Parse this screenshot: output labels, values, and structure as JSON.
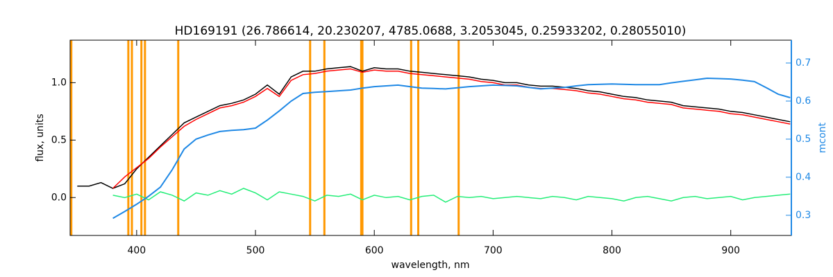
{
  "chart_data": {
    "type": "line",
    "title": "HD169191    (26.786614, 20.230207, 4785.0688, 3.2053045, 0.25933202, 0.28055010)",
    "xlabel": "wavelength, nm",
    "ylabel": "flux, units",
    "y2label": "mcont",
    "xlim": [
      344,
      951
    ],
    "xticks": [
      400,
      500,
      600,
      700,
      800,
      900
    ],
    "ylim": [
      -0.33,
      1.37
    ],
    "yticks": [
      {
        "value": 0,
        "label": "0.0"
      },
      {
        "value": 0.5,
        "label": "0.5"
      },
      {
        "value": 1,
        "label": "1.0"
      }
    ],
    "y2lim": [
      0.247,
      0.76
    ],
    "y2ticks": [
      0.3,
      0.4,
      0.5,
      0.6,
      0.7
    ],
    "y2color": "#1e88e5",
    "vlines": [
      345,
      393,
      396,
      404,
      407,
      435,
      546,
      558,
      589,
      590,
      631,
      637,
      671
    ],
    "vline_color": "#ff9800",
    "x": [
      350,
      360,
      370,
      380,
      390,
      400,
      410,
      420,
      430,
      440,
      450,
      460,
      470,
      480,
      490,
      500,
      510,
      520,
      530,
      540,
      550,
      560,
      570,
      580,
      590,
      600,
      610,
      620,
      630,
      640,
      650,
      660,
      670,
      680,
      690,
      700,
      710,
      720,
      730,
      740,
      750,
      760,
      770,
      780,
      790,
      800,
      810,
      820,
      830,
      840,
      850,
      860,
      870,
      880,
      890,
      900,
      910,
      920,
      930,
      940,
      950
    ],
    "series": [
      {
        "color": "#000000",
        "values": [
          0.1,
          0.1,
          0.13,
          0.08,
          0.12,
          0.25,
          0.35,
          0.45,
          0.55,
          0.65,
          0.7,
          0.75,
          0.8,
          0.82,
          0.85,
          0.9,
          0.98,
          0.9,
          1.05,
          1.1,
          1.1,
          1.12,
          1.13,
          1.14,
          1.1,
          1.13,
          1.12,
          1.12,
          1.1,
          1.09,
          1.08,
          1.07,
          1.06,
          1.05,
          1.03,
          1.02,
          1.0,
          1.0,
          0.98,
          0.97,
          0.97,
          0.96,
          0.95,
          0.93,
          0.92,
          0.9,
          0.88,
          0.87,
          0.85,
          0.84,
          0.83,
          0.8,
          0.79,
          0.78,
          0.77,
          0.75,
          0.74,
          0.72,
          0.7,
          0.68,
          0.66
        ]
      },
      {
        "color": "#ff0000",
        "values": [
          null,
          null,
          null,
          0.08,
          0.18,
          0.26,
          0.34,
          0.44,
          0.53,
          0.62,
          0.68,
          0.73,
          0.78,
          0.8,
          0.83,
          0.88,
          0.95,
          0.88,
          1.02,
          1.07,
          1.08,
          1.1,
          1.11,
          1.12,
          1.09,
          1.11,
          1.1,
          1.1,
          1.08,
          1.07,
          1.06,
          1.05,
          1.04,
          1.03,
          1.01,
          1.0,
          0.98,
          0.98,
          0.96,
          0.95,
          0.95,
          0.94,
          0.93,
          0.91,
          0.9,
          0.88,
          0.86,
          0.85,
          0.83,
          0.82,
          0.81,
          0.78,
          0.77,
          0.76,
          0.75,
          0.73,
          0.72,
          0.7,
          0.68,
          0.66,
          0.64
        ]
      },
      {
        "color": "#22ee77",
        "values": [
          null,
          null,
          null,
          0.02,
          0.0,
          0.03,
          -0.02,
          0.05,
          0.02,
          -0.03,
          0.04,
          0.02,
          0.06,
          0.03,
          0.08,
          0.04,
          -0.02,
          0.05,
          0.03,
          0.01,
          -0.03,
          0.02,
          0.01,
          0.03,
          -0.02,
          0.02,
          0.0,
          0.01,
          -0.02,
          0.01,
          0.02,
          -0.04,
          0.01,
          0.0,
          0.01,
          -0.01,
          0.0,
          0.01,
          0.0,
          -0.01,
          0.01,
          0.0,
          -0.02,
          0.01,
          0.0,
          -0.01,
          -0.03,
          0.0,
          0.01,
          -0.01,
          -0.03,
          0.0,
          0.01,
          -0.01,
          0.0,
          0.01,
          -0.02,
          0.0,
          0.01,
          0.02,
          0.03
        ]
      },
      {
        "color": "#1e88e5",
        "axis": "y2",
        "values": [
          null,
          null,
          null,
          0.292,
          0.31,
          0.329,
          0.35,
          0.374,
          0.42,
          0.474,
          0.5,
          0.511,
          0.52,
          0.523,
          0.525,
          0.529,
          0.55,
          0.574,
          0.6,
          0.62,
          0.623,
          0.625,
          0.627,
          0.629,
          0.634,
          0.638,
          0.64,
          0.642,
          0.638,
          0.634,
          0.633,
          0.632,
          0.635,
          0.638,
          0.64,
          0.642,
          0.641,
          0.64,
          0.636,
          0.632,
          0.634,
          0.636,
          0.64,
          0.643,
          0.644,
          0.645,
          0.644,
          0.643,
          0.643,
          0.643,
          0.648,
          0.652,
          0.656,
          0.66,
          0.659,
          0.658,
          0.655,
          0.651,
          0.635,
          0.618,
          0.609
        ]
      }
    ]
  }
}
